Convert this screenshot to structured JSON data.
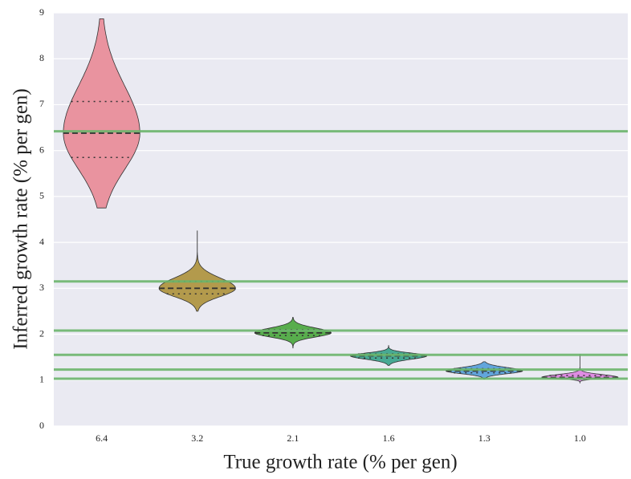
{
  "chart_data": {
    "type": "violin",
    "xlabel": "True growth rate (% per gen)",
    "ylabel": "Inferred growth rate (% per gen)",
    "categories": [
      "6.4",
      "3.2",
      "2.1",
      "1.6",
      "1.3",
      "1.0"
    ],
    "violins": [
      {
        "min": 4.75,
        "q1": 5.85,
        "median": 6.38,
        "q3": 7.07,
        "max": 8.87,
        "color": "#e9939f"
      },
      {
        "min": 2.5,
        "q1": 2.88,
        "median": 3.0,
        "q3": 3.15,
        "max": 4.25,
        "color": "#b39a4c"
      },
      {
        "min": 1.7,
        "q1": 1.97,
        "median": 2.03,
        "q3": 2.1,
        "max": 2.37,
        "color": "#58ad4d"
      },
      {
        "min": 1.32,
        "q1": 1.48,
        "median": 1.53,
        "q3": 1.57,
        "max": 1.76,
        "color": "#47a994"
      },
      {
        "min": 1.02,
        "q1": 1.16,
        "median": 1.2,
        "q3": 1.25,
        "max": 1.4,
        "color": "#62a5dc"
      },
      {
        "min": 0.93,
        "q1": 1.04,
        "median": 1.06,
        "q3": 1.1,
        "max": 1.57,
        "color": "#df8de3"
      }
    ],
    "reference_lines": {
      "values": [
        6.42,
        3.15,
        2.08,
        1.55,
        1.23,
        1.03
      ],
      "color": "#6cb56c"
    },
    "ylim": [
      0,
      9
    ],
    "yticks": [
      0,
      1,
      2,
      3,
      4,
      5,
      6,
      7,
      8,
      9
    ],
    "grid": true
  }
}
